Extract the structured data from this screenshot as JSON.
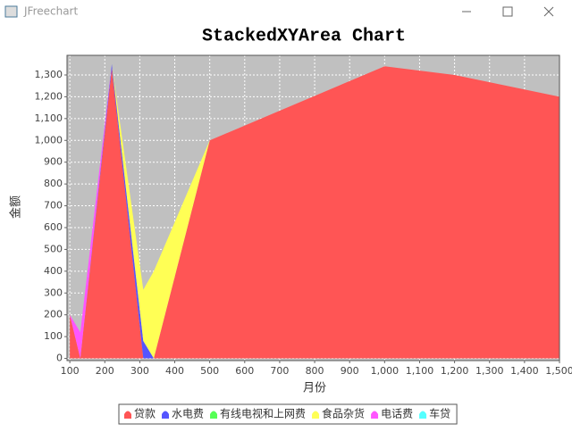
{
  "window": {
    "title": "JFreechart"
  },
  "chart_data": {
    "type": "stacked_area",
    "title": "StackedXYArea Chart",
    "x_label": "月份",
    "y_label": "金额",
    "x": [
      100,
      130,
      220,
      310,
      340,
      500,
      1000,
      1200,
      1500
    ],
    "series": [
      {
        "name": "贷款",
        "color": "#ff5555",
        "values": [
          200,
          0,
          1330,
          0,
          0,
          1000,
          1340,
          1300,
          1200
        ]
      },
      {
        "name": "水电费",
        "color": "#5555ff",
        "values": [
          0,
          0,
          20,
          80,
          0,
          0,
          0,
          0,
          0
        ]
      },
      {
        "name": "有线电视和上网费",
        "color": "#55ff55",
        "values": [
          0,
          0,
          0,
          0,
          0,
          0,
          0,
          0,
          0
        ]
      },
      {
        "name": "食品杂货",
        "color": "#ffff55",
        "values": [
          0,
          0,
          0,
          235,
          400,
          0,
          0,
          0,
          0
        ]
      },
      {
        "name": "电话费",
        "color": "#ff55ff",
        "values": [
          0,
          120,
          0,
          0,
          0,
          0,
          0,
          0,
          0
        ]
      },
      {
        "name": "车贷",
        "color": "#55ffff",
        "values": [
          0,
          0,
          0,
          0,
          0,
          0,
          0,
          0,
          0
        ]
      }
    ],
    "xlim": [
      92,
      1500
    ],
    "ylim": [
      -10,
      1390
    ],
    "xticks": [
      100,
      200,
      300,
      400,
      500,
      600,
      700,
      800,
      900,
      {
        "value": 1000,
        "label": "1,000"
      },
      {
        "value": 1100,
        "label": "1,100"
      },
      {
        "value": 1200,
        "label": "1,200"
      },
      {
        "value": 1300,
        "label": "1,300"
      },
      {
        "value": 1400,
        "label": "1,400"
      },
      {
        "value": 1500,
        "label": "1,500"
      }
    ],
    "yticks": [
      0,
      100,
      200,
      300,
      400,
      500,
      600,
      700,
      800,
      900,
      {
        "value": 1000,
        "label": "1,000"
      },
      {
        "value": 1100,
        "label": "1,100"
      },
      {
        "value": 1200,
        "label": "1,200"
      },
      {
        "value": 1300,
        "label": "1,300"
      }
    ],
    "grid": true,
    "legend": "bottom"
  }
}
